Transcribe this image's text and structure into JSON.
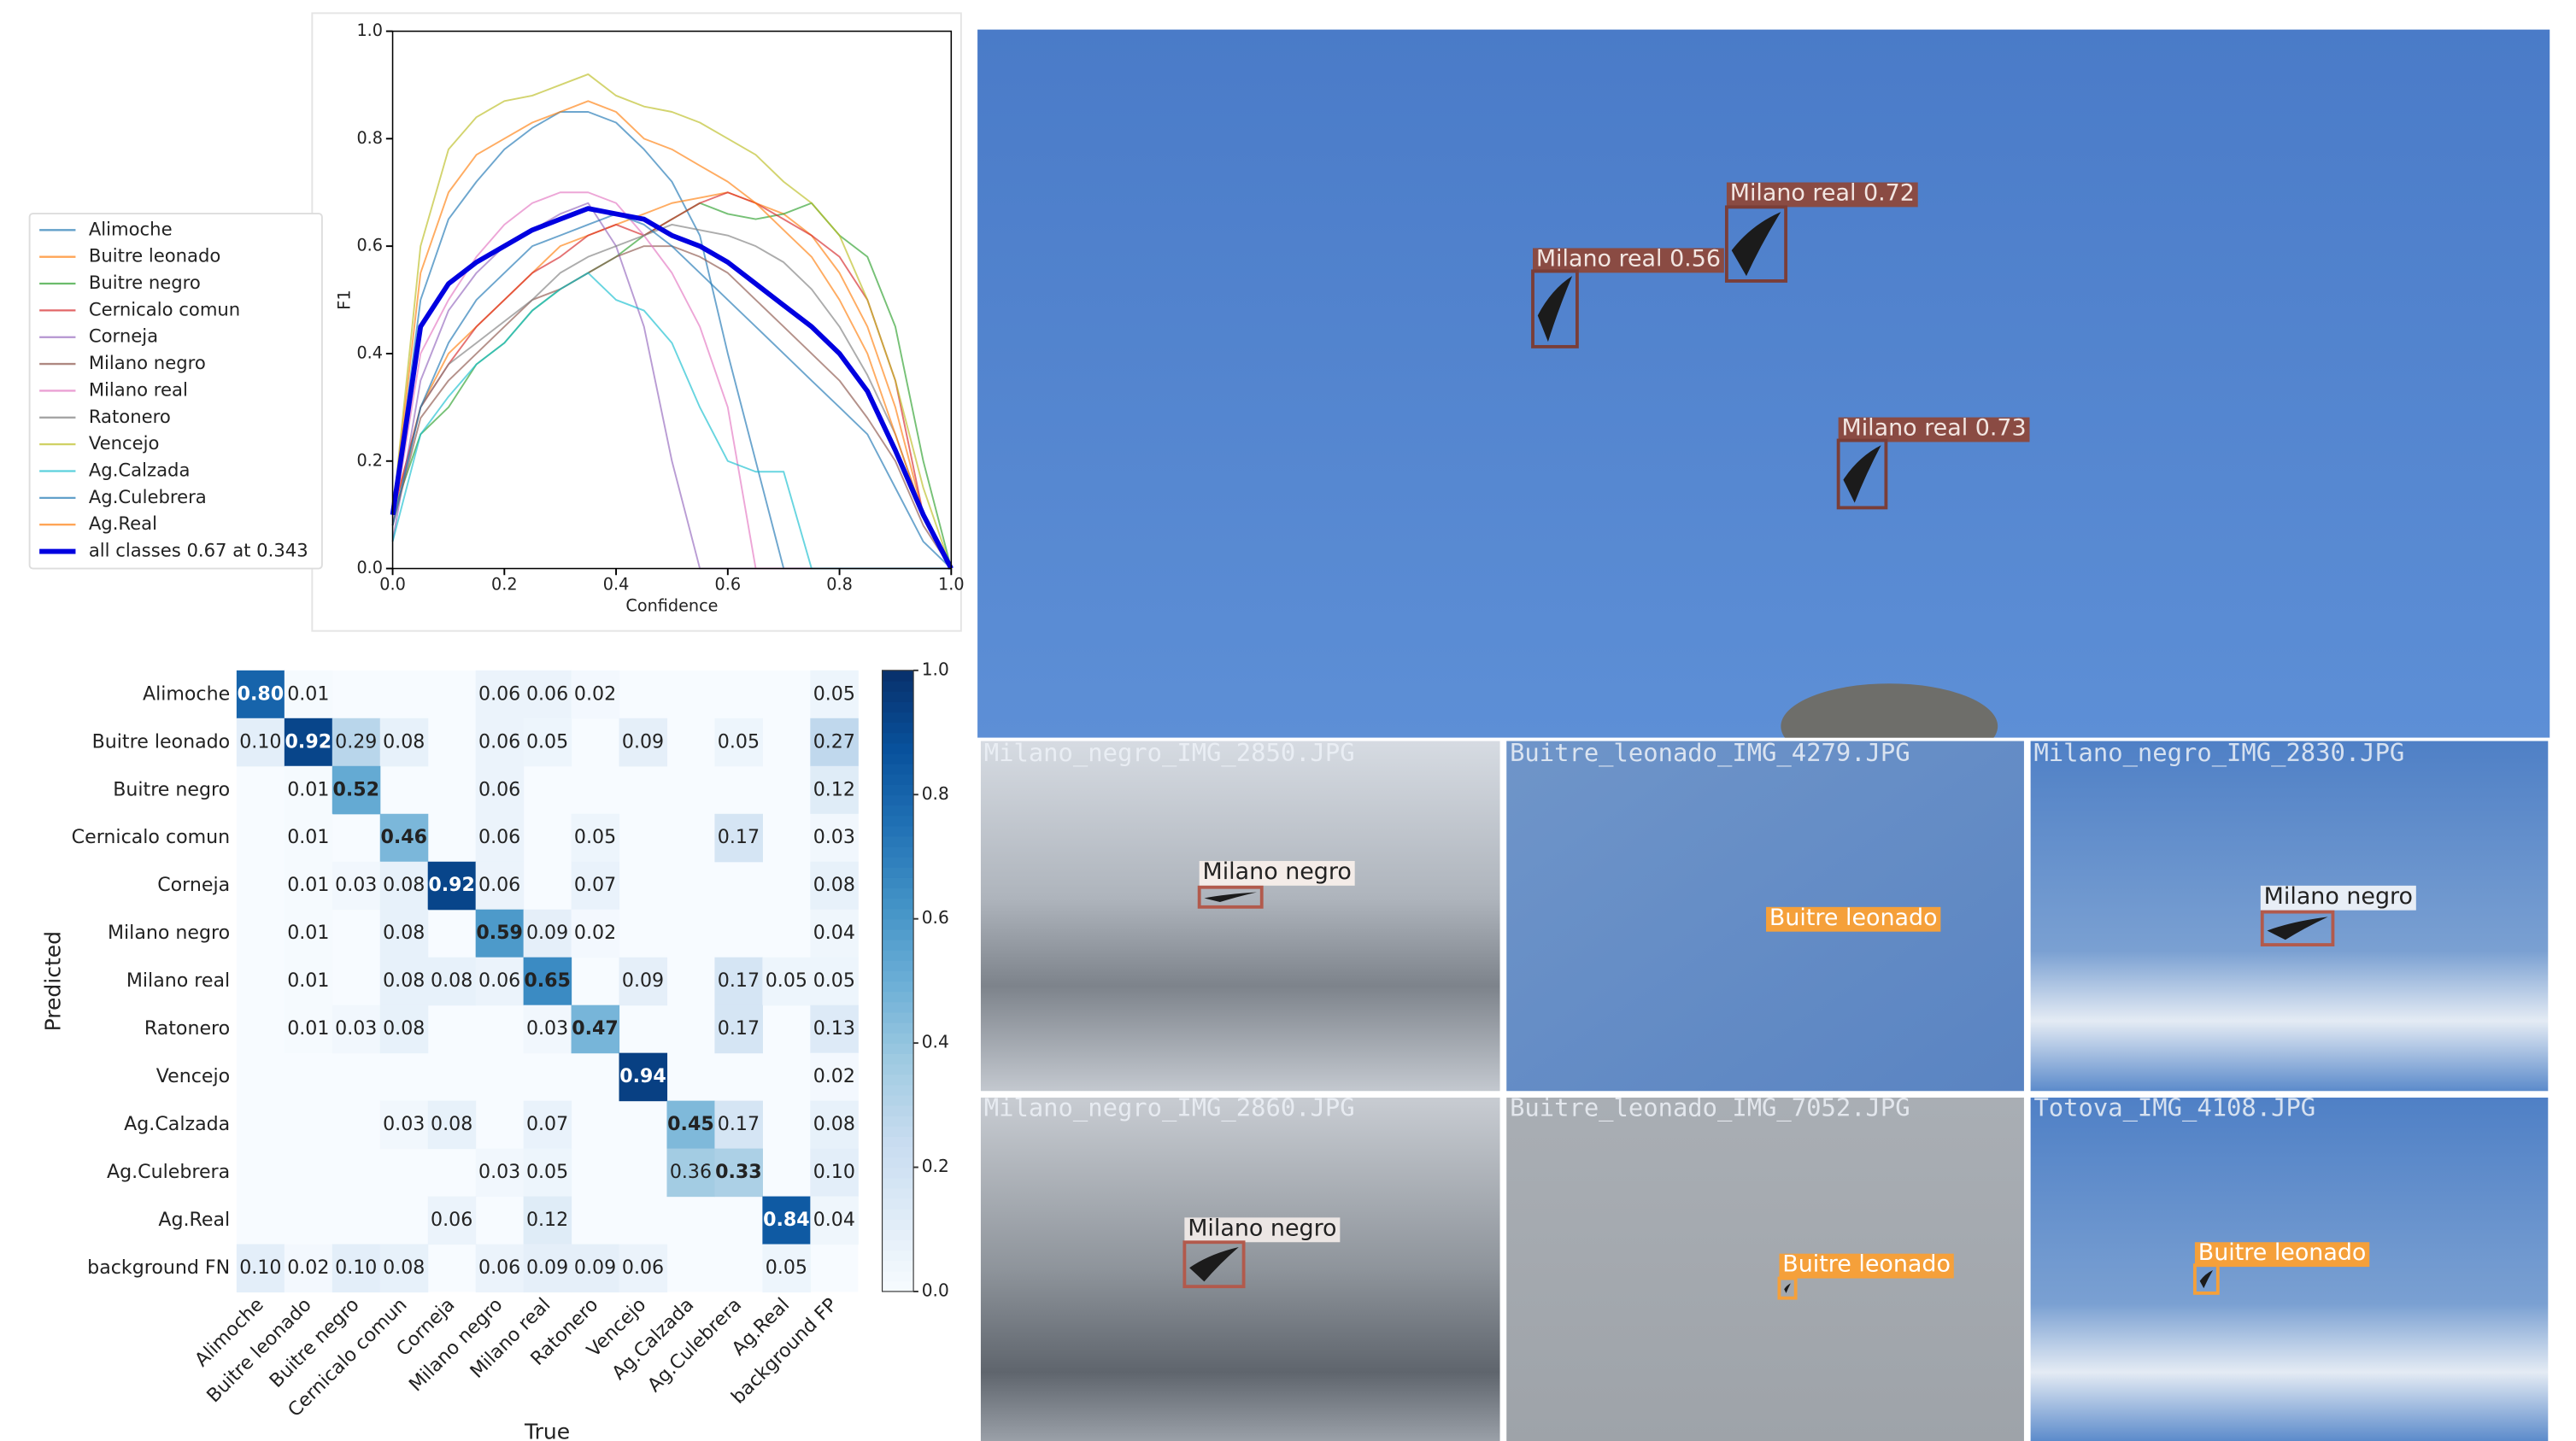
{
  "chart_data": [
    {
      "type": "line",
      "xlabel": "Confidence",
      "ylabel": "F1",
      "x": [
        0,
        0.05,
        0.1,
        0.15,
        0.2,
        0.25,
        0.3,
        0.35,
        0.4,
        0.45,
        0.5,
        0.55,
        0.6,
        0.65,
        0.7,
        0.75,
        0.8,
        0.85,
        0.9,
        0.95,
        1
      ],
      "xlim": [
        0,
        1
      ],
      "ylim": [
        0,
        1
      ],
      "xticks": [
        {
          "value": 0,
          "label": "0.0"
        },
        0.2,
        0.4,
        0.6,
        0.8,
        {
          "value": 1,
          "label": "1.0"
        }
      ],
      "yticks": [
        {
          "value": 0,
          "label": "0.0"
        },
        0.2,
        0.4,
        0.6,
        0.8,
        {
          "value": 1,
          "label": "1.0"
        }
      ],
      "legend": "left",
      "series": [
        {
          "name": "Alimoche",
          "color": "#1f77b4",
          "values": [
            0.1,
            0.5,
            0.65,
            0.72,
            0.78,
            0.82,
            0.85,
            0.85,
            0.83,
            0.78,
            0.72,
            0.62,
            0.4,
            0.2,
            0,
            0,
            0,
            0,
            0,
            0,
            0
          ]
        },
        {
          "name": "Buitre leonado",
          "color": "#ff7f0e",
          "values": [
            0.1,
            0.3,
            0.4,
            0.45,
            0.5,
            0.55,
            0.6,
            0.62,
            0.64,
            0.66,
            0.68,
            0.69,
            0.7,
            0.68,
            0.66,
            0.62,
            0.55,
            0.45,
            0.3,
            0.1,
            0
          ]
        },
        {
          "name": "Buitre negro",
          "color": "#2ca02c",
          "values": [
            0.1,
            0.25,
            0.3,
            0.38,
            0.42,
            0.48,
            0.52,
            0.55,
            0.58,
            0.62,
            0.65,
            0.68,
            0.66,
            0.65,
            0.66,
            0.68,
            0.62,
            0.58,
            0.45,
            0.2,
            0
          ]
        },
        {
          "name": "Cernicalo comun",
          "color": "#d62728",
          "values": [
            0.1,
            0.3,
            0.38,
            0.45,
            0.5,
            0.55,
            0.58,
            0.62,
            0.64,
            0.62,
            0.65,
            0.68,
            0.7,
            0.68,
            0.65,
            0.62,
            0.58,
            0.5,
            0.35,
            0.1,
            0
          ]
        },
        {
          "name": "Corneja",
          "color": "#9467bd",
          "values": [
            0.05,
            0.35,
            0.48,
            0.55,
            0.6,
            0.63,
            0.66,
            0.68,
            0.6,
            0.45,
            0.2,
            0,
            0,
            0,
            0,
            0,
            0,
            0,
            0,
            0,
            0
          ]
        },
        {
          "name": "Milano negro",
          "color": "#8c564b",
          "values": [
            0.08,
            0.28,
            0.35,
            0.4,
            0.45,
            0.5,
            0.52,
            0.55,
            0.58,
            0.6,
            0.6,
            0.58,
            0.55,
            0.5,
            0.45,
            0.4,
            0.35,
            0.28,
            0.2,
            0.08,
            0
          ]
        },
        {
          "name": "Milano real",
          "color": "#e377c2",
          "values": [
            0.08,
            0.4,
            0.5,
            0.58,
            0.64,
            0.68,
            0.7,
            0.7,
            0.68,
            0.62,
            0.55,
            0.45,
            0.3,
            0,
            0,
            0,
            0,
            0,
            0,
            0,
            0
          ]
        },
        {
          "name": "Ratonero",
          "color": "#7f7f7f",
          "values": [
            0.08,
            0.3,
            0.38,
            0.42,
            0.46,
            0.5,
            0.55,
            0.58,
            0.6,
            0.62,
            0.64,
            0.63,
            0.62,
            0.6,
            0.57,
            0.52,
            0.45,
            0.36,
            0.25,
            0.1,
            0
          ]
        },
        {
          "name": "Vencejo",
          "color": "#bcbd22",
          "values": [
            0.1,
            0.6,
            0.78,
            0.84,
            0.87,
            0.88,
            0.9,
            0.92,
            0.88,
            0.86,
            0.85,
            0.83,
            0.8,
            0.77,
            0.72,
            0.68,
            0.62,
            0.5,
            0.35,
            0.15,
            0
          ]
        },
        {
          "name": "Ag.Calzada",
          "color": "#17becf",
          "values": [
            0.05,
            0.25,
            0.32,
            0.38,
            0.42,
            0.48,
            0.52,
            0.55,
            0.5,
            0.48,
            0.42,
            0.3,
            0.2,
            0.18,
            0.18,
            0,
            0,
            0,
            0,
            0,
            0
          ]
        },
        {
          "name": "Ag.Culebrera",
          "color": "#1f77b4",
          "values": [
            0.08,
            0.3,
            0.42,
            0.5,
            0.55,
            0.6,
            0.62,
            0.64,
            0.66,
            0.64,
            0.6,
            0.55,
            0.5,
            0.45,
            0.4,
            0.35,
            0.3,
            0.25,
            0.15,
            0.05,
            0
          ]
        },
        {
          "name": "Ag.Real",
          "color": "#ff7f0e",
          "values": [
            0.1,
            0.55,
            0.7,
            0.77,
            0.8,
            0.83,
            0.85,
            0.87,
            0.85,
            0.8,
            0.78,
            0.75,
            0.72,
            0.68,
            0.63,
            0.58,
            0.5,
            0.4,
            0.25,
            0.1,
            0
          ]
        },
        {
          "name": "all classes 0.67 at 0.343",
          "color": "#0000e0",
          "values": [
            0.1,
            0.45,
            0.53,
            0.57,
            0.6,
            0.63,
            0.65,
            0.67,
            0.66,
            0.65,
            0.62,
            0.6,
            0.57,
            0.53,
            0.49,
            0.45,
            0.4,
            0.33,
            0.22,
            0.1,
            0
          ]
        }
      ]
    },
    {
      "type": "heatmap",
      "xlabel": "True",
      "ylabel": "Predicted",
      "x_categories": [
        "Alimoche",
        "Buitre leonado",
        "Buitre negro",
        "Cernicalo comun",
        "Corneja",
        "Milano negro",
        "Milano real",
        "Ratonero",
        "Vencejo",
        "Ag.Calzada",
        "Ag.Culebrera",
        "Ag.Real",
        "background FP"
      ],
      "y_categories": [
        "Alimoche",
        "Buitre leonado",
        "Buitre negro",
        "Cernicalo comun",
        "Corneja",
        "Milano negro",
        "Milano real",
        "Ratonero",
        "Vencejo",
        "Ag.Calzada",
        "Ag.Culebrera",
        "Ag.Real",
        "background FN"
      ],
      "colormap": "Blues",
      "zlim": [
        0,
        1
      ],
      "zticks": [
        {
          "value": 0,
          "label": "0.0"
        },
        0.2,
        0.4,
        0.6,
        0.8,
        {
          "value": 1,
          "label": "1.0"
        }
      ],
      "values": [
        [
          0.8,
          0.01,
          null,
          null,
          null,
          0.06,
          0.06,
          0.02,
          null,
          null,
          null,
          null,
          0.05
        ],
        [
          0.1,
          0.92,
          0.29,
          0.08,
          null,
          0.06,
          0.05,
          null,
          0.09,
          null,
          0.05,
          null,
          0.27
        ],
        [
          null,
          0.01,
          0.52,
          null,
          null,
          0.06,
          null,
          null,
          null,
          null,
          null,
          null,
          0.12
        ],
        [
          null,
          0.01,
          null,
          0.46,
          null,
          0.06,
          null,
          0.05,
          null,
          null,
          0.17,
          null,
          0.03
        ],
        [
          null,
          0.01,
          0.03,
          0.08,
          0.92,
          0.06,
          null,
          0.07,
          null,
          null,
          null,
          null,
          0.08
        ],
        [
          null,
          0.01,
          null,
          0.08,
          null,
          0.59,
          0.09,
          0.02,
          null,
          null,
          null,
          null,
          0.04
        ],
        [
          null,
          0.01,
          null,
          0.08,
          0.08,
          0.06,
          0.65,
          null,
          0.09,
          null,
          0.17,
          0.05,
          0.05
        ],
        [
          null,
          0.01,
          0.03,
          0.08,
          null,
          null,
          0.03,
          0.47,
          null,
          null,
          0.17,
          null,
          0.13
        ],
        [
          null,
          null,
          null,
          null,
          null,
          null,
          null,
          null,
          0.94,
          null,
          null,
          null,
          0.02
        ],
        [
          null,
          null,
          null,
          0.03,
          0.08,
          null,
          0.07,
          null,
          null,
          0.45,
          0.17,
          null,
          0.08
        ],
        [
          null,
          null,
          null,
          null,
          null,
          0.03,
          0.05,
          null,
          null,
          0.36,
          0.33,
          null,
          0.1
        ],
        [
          null,
          null,
          null,
          null,
          0.06,
          null,
          0.12,
          null,
          null,
          null,
          null,
          0.84,
          0.04
        ],
        [
          0.1,
          0.02,
          0.1,
          0.08,
          null,
          0.06,
          0.09,
          0.09,
          0.06,
          null,
          null,
          0.05,
          null
        ]
      ],
      "value_labels": [
        [
          "0.80",
          "0.01",
          null,
          null,
          null,
          "0.06",
          "0.06",
          "0.02",
          null,
          null,
          null,
          null,
          "0.05"
        ],
        [
          "0.10",
          "0.92",
          "0.29",
          "0.08",
          null,
          "0.06",
          "0.05",
          null,
          "0.09",
          null,
          "0.05",
          null,
          "0.27"
        ],
        [
          null,
          "0.01",
          "0.52",
          null,
          null,
          "0.06",
          null,
          null,
          null,
          null,
          null,
          null,
          "0.12"
        ],
        [
          null,
          "0.01",
          null,
          "0.46",
          null,
          "0.06",
          null,
          "0.05",
          null,
          null,
          "0.17",
          null,
          "0.03"
        ],
        [
          null,
          "0.01",
          "0.03",
          "0.08",
          "0.92",
          "0.06",
          null,
          "0.07",
          null,
          null,
          null,
          null,
          "0.08"
        ],
        [
          null,
          "0.01",
          null,
          "0.08",
          null,
          "0.59",
          "0.09",
          "0.02",
          null,
          null,
          null,
          null,
          "0.04"
        ],
        [
          null,
          "0.01",
          null,
          "0.08",
          "0.08",
          "0.06",
          "0.65",
          null,
          "0.09",
          null,
          "0.17",
          "0.05",
          "0.05"
        ],
        [
          null,
          "0.01",
          "0.03",
          "0.08",
          null,
          null,
          "0.03",
          "0.47",
          null,
          null,
          "0.17",
          null,
          "0.13"
        ],
        [
          null,
          null,
          null,
          null,
          null,
          null,
          null,
          null,
          "0.94",
          null,
          null,
          null,
          "0.02"
        ],
        [
          null,
          null,
          null,
          "0.03",
          "0.08",
          null,
          "0.07",
          null,
          null,
          "0.45",
          "0.17",
          null,
          "0.08"
        ],
        [
          null,
          null,
          null,
          null,
          null,
          "0.03",
          "0.05",
          null,
          null,
          "0.36",
          "0.33",
          null,
          "0.10"
        ],
        [
          null,
          null,
          null,
          null,
          "0.06",
          null,
          "0.12",
          null,
          null,
          null,
          null,
          "0.84",
          "0.04"
        ],
        [
          "0.10",
          "0.02",
          "0.10",
          "0.08",
          null,
          "0.06",
          "0.09",
          "0.09",
          "0.06",
          null,
          null,
          "0.05",
          null
        ]
      ]
    }
  ],
  "detection_images": {
    "main": {
      "labels": [
        "Milano real 0.56",
        "Milano real 0.72",
        "Milano real 0.73"
      ]
    },
    "tiles": [
      {
        "file": "Milano_negro_IMG_2850.JPG",
        "label": "Milano negro"
      },
      {
        "file": "Buitre_leonado_IMG_4279.JPG",
        "label": "Buitre leonado"
      },
      {
        "file": "Milano_negro_IMG_2830.JPG",
        "label": "Milano negro"
      },
      {
        "file": "Milano_negro_IMG_2860.JPG",
        "label": "Milano negro"
      },
      {
        "file": "Buitre_leonado_IMG_7052.JPG",
        "label": "Buitre leonado"
      },
      {
        "file": "Totova_IMG_4108.JPG",
        "label": "Buitre leonado"
      }
    ]
  }
}
